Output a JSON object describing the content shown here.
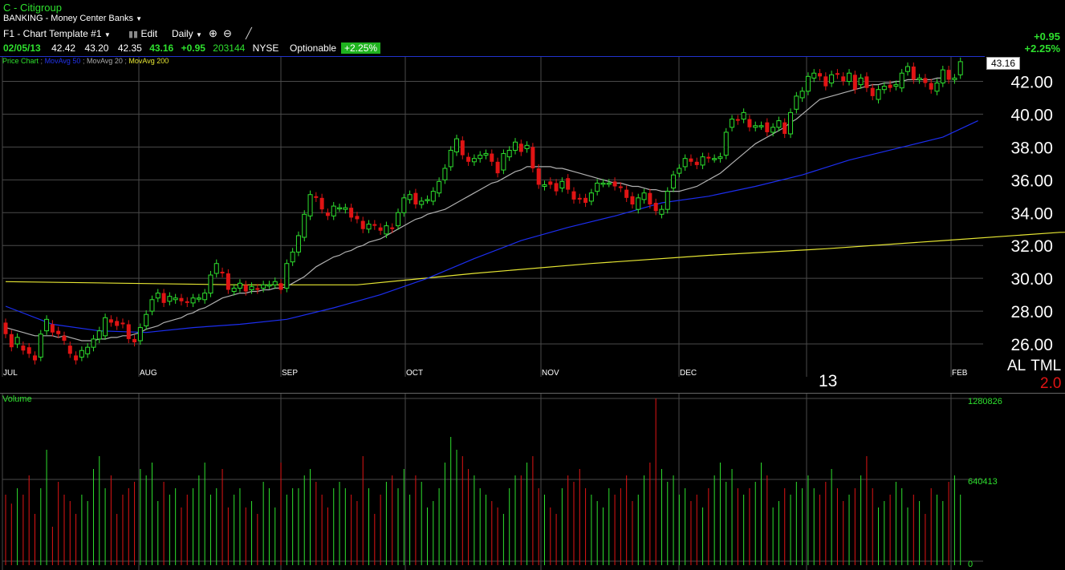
{
  "header": {
    "title": "C - Citigroup",
    "industry": "BANKING - Money Center Banks",
    "template": "F1 - Chart Template #1",
    "edit_label": "Edit",
    "period": "Daily"
  },
  "quote": {
    "date": "02/05/13",
    "open": "42.42",
    "high": "43.20",
    "low": "42.35",
    "close": "43.16",
    "change": "+0.95",
    "volume": "203144",
    "exchange": "NYSE",
    "optionable": "Optionable",
    "pct_badge": "+2.25%",
    "right_change": "+0.95",
    "right_pct": "+2.25%"
  },
  "legend": {
    "price": "Price Chart",
    "ma50": "MovAvg 50",
    "ma20": "MovAvg 20",
    "ma200": "MovAvg 200"
  },
  "colors": {
    "up": "#2ee02e",
    "down": "#e01414",
    "ma20": "#b0b0b0",
    "ma50": "#1c2ef0",
    "ma200": "#e6e633",
    "grid": "#4a4a4a",
    "accent_line": "#2233cc"
  },
  "chart_data": {
    "type": "candlestick",
    "ylim": [
      24,
      43
    ],
    "yticks": [
      "26.00",
      "28.00",
      "30.00",
      "32.00",
      "34.00",
      "36.00",
      "38.00",
      "40.00",
      "42.00"
    ],
    "months": [
      "JUL",
      "AUG",
      "SEP",
      "OCT",
      "NOV",
      "DEC",
      "13",
      "FEB"
    ],
    "last_price_label": "43.16",
    "candles": [
      [
        27.3,
        26.6
      ],
      [
        26.6,
        25.8
      ],
      [
        26.0,
        26.4
      ],
      [
        25.9,
        25.6
      ],
      [
        25.8,
        25.4
      ],
      [
        25.3,
        25.0
      ],
      [
        25.2,
        26.6
      ],
      [
        26.8,
        27.5
      ],
      [
        27.2,
        26.7
      ],
      [
        26.8,
        26.6
      ],
      [
        26.5,
        26.2
      ],
      [
        25.9,
        25.4
      ],
      [
        25.3,
        25.0
      ],
      [
        25.2,
        25.6
      ],
      [
        25.4,
        25.8
      ],
      [
        25.8,
        26.3
      ],
      [
        26.3,
        26.8
      ],
      [
        26.5,
        27.6
      ],
      [
        27.5,
        27.3
      ],
      [
        27.4,
        27.1
      ],
      [
        27.3,
        27.2
      ],
      [
        27.2,
        26.3
      ],
      [
        26.3,
        26.1
      ],
      [
        26.2,
        27.0
      ],
      [
        27.1,
        27.8
      ],
      [
        28.0,
        28.7
      ],
      [
        28.8,
        29.1
      ],
      [
        29.1,
        28.5
      ],
      [
        28.6,
        28.9
      ],
      [
        28.7,
        28.8
      ],
      [
        28.8,
        28.6
      ],
      [
        28.6,
        28.5
      ],
      [
        28.5,
        28.8
      ],
      [
        28.8,
        28.8
      ],
      [
        28.7,
        29.1
      ],
      [
        29.1,
        30.2
      ],
      [
        30.3,
        30.9
      ],
      [
        30.4,
        30.3
      ],
      [
        30.3,
        29.3
      ],
      [
        29.2,
        29.4
      ],
      [
        29.4,
        29.7
      ],
      [
        29.6,
        29.2
      ],
      [
        29.3,
        29.5
      ],
      [
        29.4,
        29.3
      ],
      [
        29.4,
        29.6
      ],
      [
        29.6,
        29.6
      ],
      [
        29.6,
        29.8
      ],
      [
        29.7,
        29.3
      ],
      [
        29.4,
        30.9
      ],
      [
        31.0,
        31.6
      ],
      [
        31.6,
        32.6
      ],
      [
        32.5,
        33.9
      ],
      [
        33.8,
        35.1
      ],
      [
        35.0,
        34.9
      ],
      [
        34.9,
        34.2
      ],
      [
        34.0,
        33.8
      ],
      [
        33.8,
        34.4
      ],
      [
        34.3,
        34.3
      ],
      [
        34.2,
        34.3
      ],
      [
        34.3,
        33.7
      ],
      [
        33.8,
        33.6
      ],
      [
        33.5,
        33.0
      ],
      [
        33.0,
        33.3
      ],
      [
        33.3,
        33.2
      ],
      [
        33.1,
        32.9
      ],
      [
        32.7,
        33.2
      ],
      [
        33.1,
        33.0
      ],
      [
        33.2,
        34.0
      ],
      [
        34.0,
        34.9
      ],
      [
        34.8,
        35.1
      ],
      [
        35.2,
        34.5
      ],
      [
        34.5,
        34.7
      ],
      [
        34.8,
        34.8
      ],
      [
        34.7,
        35.3
      ],
      [
        35.2,
        35.9
      ],
      [
        36.0,
        36.7
      ],
      [
        36.8,
        37.8
      ],
      [
        37.7,
        38.5
      ],
      [
        38.4,
        37.5
      ],
      [
        37.4,
        37.1
      ],
      [
        37.1,
        37.3
      ],
      [
        37.3,
        37.5
      ],
      [
        37.5,
        37.6
      ],
      [
        37.6,
        37.1
      ],
      [
        37.1,
        36.4
      ],
      [
        36.6,
        37.6
      ],
      [
        37.4,
        37.8
      ],
      [
        37.8,
        38.3
      ],
      [
        38.2,
        37.7
      ],
      [
        37.9,
        38.1
      ],
      [
        38.0,
        36.7
      ],
      [
        36.7,
        35.7
      ],
      [
        35.6,
        35.7
      ],
      [
        35.9,
        35.7
      ],
      [
        35.8,
        35.3
      ],
      [
        35.5,
        35.9
      ],
      [
        36.1,
        35.4
      ],
      [
        35.3,
        34.8
      ],
      [
        34.9,
        34.8
      ],
      [
        34.9,
        34.6
      ],
      [
        34.7,
        35.2
      ],
      [
        35.3,
        35.8
      ],
      [
        35.8,
        35.8
      ],
      [
        35.8,
        35.8
      ],
      [
        35.9,
        35.6
      ],
      [
        35.6,
        35.5
      ],
      [
        35.4,
        34.9
      ],
      [
        35.0,
        34.5
      ],
      [
        34.2,
        34.9
      ],
      [
        34.8,
        35.2
      ],
      [
        35.2,
        34.5
      ],
      [
        34.6,
        34.1
      ],
      [
        33.9,
        34.2
      ],
      [
        34.2,
        35.3
      ],
      [
        35.5,
        36.3
      ],
      [
        36.4,
        36.7
      ],
      [
        36.8,
        37.3
      ],
      [
        37.3,
        37.1
      ],
      [
        37.1,
        36.9
      ],
      [
        36.9,
        37.4
      ],
      [
        37.4,
        37.3
      ],
      [
        37.3,
        37.3
      ],
      [
        37.3,
        37.4
      ],
      [
        37.5,
        38.9
      ],
      [
        39.2,
        39.7
      ],
      [
        39.7,
        39.6
      ],
      [
        39.7,
        40.1
      ],
      [
        39.7,
        39.2
      ],
      [
        39.2,
        39.3
      ],
      [
        39.3,
        39.3
      ],
      [
        39.5,
        38.9
      ],
      [
        38.9,
        39.2
      ],
      [
        39.2,
        39.6
      ],
      [
        39.5,
        38.8
      ],
      [
        38.8,
        40.1
      ],
      [
        40.3,
        41.1
      ],
      [
        41.0,
        41.4
      ],
      [
        41.4,
        42.3
      ],
      [
        42.2,
        42.5
      ],
      [
        42.5,
        42.3
      ],
      [
        42.3,
        41.7
      ],
      [
        41.9,
        42.4
      ],
      [
        42.5,
        42.4
      ],
      [
        42.3,
        42.0
      ],
      [
        42.0,
        42.5
      ],
      [
        42.4,
        41.5
      ],
      [
        41.8,
        42.2
      ],
      [
        42.3,
        41.6
      ],
      [
        41.6,
        41.1
      ],
      [
        40.9,
        41.5
      ],
      [
        41.5,
        41.7
      ],
      [
        41.8,
        41.6
      ],
      [
        41.7,
        41.8
      ],
      [
        41.6,
        42.5
      ],
      [
        42.6,
        42.9
      ],
      [
        42.9,
        42.1
      ],
      [
        42.1,
        42.2
      ],
      [
        42.2,
        41.9
      ],
      [
        41.9,
        41.5
      ],
      [
        41.4,
        41.9
      ],
      [
        41.9,
        42.7
      ],
      [
        42.7,
        42.1
      ],
      [
        42.1,
        42.2
      ],
      [
        42.4,
        43.2
      ]
    ],
    "ma20": [
      27.0,
      26.9,
      26.8,
      26.7,
      26.6,
      26.5,
      26.5,
      26.5,
      26.5,
      26.4,
      26.5,
      26.4,
      26.3,
      26.2,
      26.2,
      26.2,
      26.3,
      26.3,
      26.4,
      26.4,
      26.5,
      26.5,
      26.6,
      26.7,
      26.9,
      27.0,
      27.1,
      27.3,
      27.4,
      27.5,
      27.6,
      27.8,
      27.9,
      28.1,
      28.2,
      28.4,
      28.6,
      28.8,
      28.9,
      29.0,
      29.1,
      29.1,
      29.2,
      29.2,
      29.3,
      29.3,
      29.4,
      29.4,
      29.5,
      29.7,
      29.9,
      30.1,
      30.4,
      30.7,
      30.9,
      31.1,
      31.3,
      31.4,
      31.6,
      31.7,
      31.9,
      32.0,
      32.2,
      32.3,
      32.4,
      32.6,
      32.8,
      33.0,
      33.2,
      33.4,
      33.6,
      33.7,
      33.9,
      34.0,
      34.1,
      34.2,
      34.4,
      34.6,
      34.8,
      35.0,
      35.2,
      35.4,
      35.6,
      35.8,
      35.9,
      36.1,
      36.3,
      36.5,
      36.6,
      36.8,
      36.8,
      36.8,
      36.8,
      36.8,
      36.7,
      36.7,
      36.6,
      36.5,
      36.4,
      36.3,
      36.2,
      36.1,
      36.0,
      35.9,
      35.8,
      35.8,
      35.7,
      35.6,
      35.6,
      35.5,
      35.4,
      35.4,
      35.3,
      35.3,
      35.3,
      35.3,
      35.4,
      35.5,
      35.6,
      35.8,
      36.0,
      36.2,
      36.4,
      36.7,
      37.0,
      37.3,
      37.6,
      37.9,
      38.2,
      38.4,
      38.6,
      38.8,
      39.0,
      39.2,
      39.5,
      39.7,
      40.0,
      40.3,
      40.6,
      40.9,
      41.0,
      41.1,
      41.2,
      41.3,
      41.4,
      41.5,
      41.6,
      41.7,
      41.8,
      41.8,
      41.9,
      41.9,
      42.0,
      42.0,
      42.1,
      42.1,
      42.1,
      42.1,
      42.1,
      42.2,
      42.2
    ],
    "ma50_ends": [
      [
        0,
        28.3
      ],
      [
        8,
        27.2
      ],
      [
        16,
        26.8
      ],
      [
        24,
        26.7
      ],
      [
        32,
        27.0
      ],
      [
        40,
        27.2
      ],
      [
        48,
        27.5
      ],
      [
        56,
        28.2
      ],
      [
        64,
        29.0
      ],
      [
        72,
        30.0
      ],
      [
        80,
        31.2
      ],
      [
        88,
        32.3
      ],
      [
        96,
        33.1
      ],
      [
        104,
        33.8
      ],
      [
        112,
        34.6
      ],
      [
        120,
        35.0
      ],
      [
        128,
        35.6
      ],
      [
        136,
        36.3
      ],
      [
        144,
        37.2
      ],
      [
        152,
        37.9
      ],
      [
        160,
        38.6
      ],
      [
        166,
        39.6
      ]
    ],
    "ma200_ends": [
      [
        0,
        29.8
      ],
      [
        20,
        29.7
      ],
      [
        40,
        29.6
      ],
      [
        60,
        29.6
      ],
      [
        80,
        30.3
      ],
      [
        100,
        30.9
      ],
      [
        120,
        31.4
      ],
      [
        140,
        31.8
      ],
      [
        160,
        32.3
      ],
      [
        180,
        32.8
      ],
      [
        193,
        32.9
      ]
    ],
    "volume": {
      "ticks": [
        "1280826",
        "640413",
        "0"
      ],
      "label": "Volume",
      "bars": [
        55,
        48,
        60,
        55,
        70,
        40,
        60,
        90,
        30,
        65,
        55,
        50,
        40,
        55,
        50,
        75,
        85,
        60,
        70,
        40,
        55,
        60,
        65,
        75,
        70,
        80,
        50,
        65,
        55,
        60,
        45,
        55,
        60,
        70,
        80,
        55,
        60,
        75,
        45,
        55,
        60,
        45,
        50,
        40,
        65,
        60,
        45,
        80,
        55,
        60,
        60,
        70,
        75,
        65,
        55,
        45,
        60,
        65,
        60,
        55,
        50,
        85,
        60,
        40,
        55,
        65,
        70,
        60,
        75,
        55,
        70,
        65,
        45,
        50,
        60,
        80,
        100,
        90,
        85,
        75,
        70,
        60,
        55,
        50,
        45,
        40,
        60,
        70,
        70,
        80,
        85,
        60,
        55,
        45,
        40,
        60,
        70,
        65,
        75,
        60,
        55,
        50,
        45,
        60,
        55,
        60,
        70,
        50,
        55,
        70,
        80,
        130,
        75,
        65,
        70,
        55,
        60,
        50,
        55,
        45,
        60,
        70,
        80,
        65,
        75,
        60,
        55,
        60,
        65,
        80,
        70,
        45,
        50,
        60,
        55,
        65,
        60,
        70,
        60,
        55,
        65,
        75,
        60,
        50,
        55,
        60,
        70,
        85,
        60,
        45,
        50,
        55,
        65,
        60,
        45,
        55,
        50,
        40,
        60,
        55,
        50,
        65,
        70,
        55
      ]
    }
  }
}
